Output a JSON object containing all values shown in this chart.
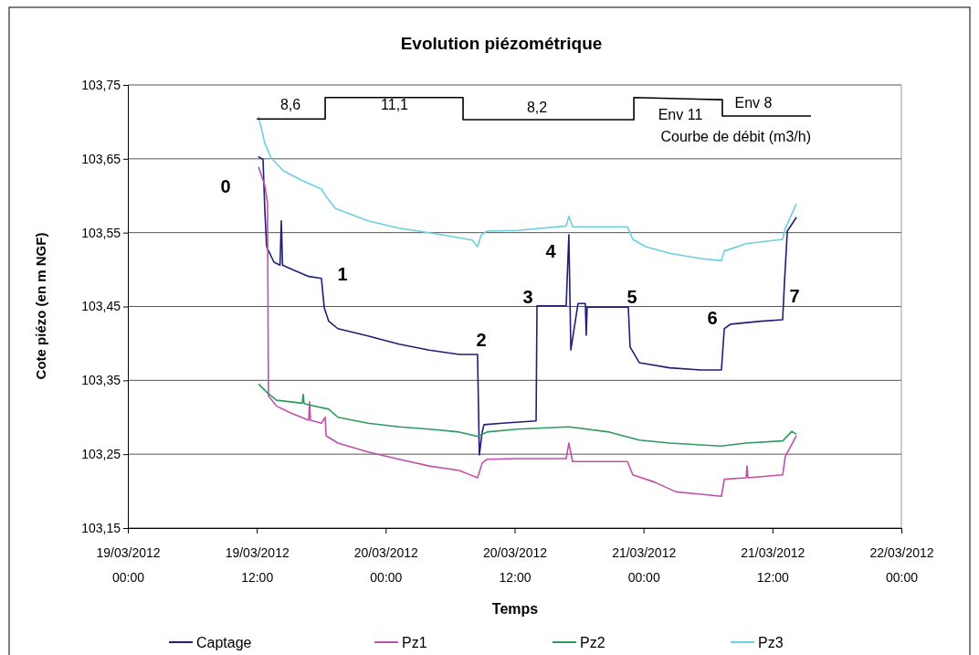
{
  "chart_data": {
    "type": "line",
    "title": "Evolution piézométrique",
    "xlabel": "Temps",
    "ylabel": "Cote piézo (en m NGF)",
    "xlim": [
      "2012-03-19T00:00",
      "2012-03-22T00:00"
    ],
    "xticks": [
      {
        "value": "2012-03-19T00:00",
        "label": "19/03/2012 00:00"
      },
      {
        "value": "2012-03-19T12:00",
        "label": "19/03/2012 12:00"
      },
      {
        "value": "2012-03-20T00:00",
        "label": "20/03/2012 00:00"
      },
      {
        "value": "2012-03-20T12:00",
        "label": "20/03/2012 12:00"
      },
      {
        "value": "2012-03-21T00:00",
        "label": "21/03/2012 00:00"
      },
      {
        "value": "2012-03-21T12:00",
        "label": "21/03/2012 12:00"
      },
      {
        "value": "2012-03-22T00:00",
        "label": "22/03/2012 00:00"
      }
    ],
    "ylim": [
      103.15,
      103.75
    ],
    "yticks": [
      {
        "value": 103.15,
        "label": "103,15"
      },
      {
        "value": 103.25,
        "label": "103,25"
      },
      {
        "value": 103.35,
        "label": "103,35"
      },
      {
        "value": 103.45,
        "label": "103,45"
      },
      {
        "value": 103.55,
        "label": "103,55"
      },
      {
        "value": 103.65,
        "label": "103,65"
      },
      {
        "value": 103.75,
        "label": "103,75"
      }
    ],
    "grid": "y",
    "legend": "bottom",
    "marker": "none",
    "line_style": "solid",
    "series": [
      {
        "name": "Captage",
        "color": "#1f1f78",
        "x": [
          "2012-03-19T12:08",
          "2012-03-19T12:35",
          "2012-03-19T12:45",
          "2012-03-19T12:55",
          "2012-03-19T13:36",
          "2012-03-19T14:10",
          "2012-03-19T14:17",
          "2012-03-19T14:24",
          "2012-03-19T15:18",
          "2012-03-19T16:45",
          "2012-03-19T18:01",
          "2012-03-19T18:17",
          "2012-03-19T18:42",
          "2012-03-19T19:33",
          "2012-03-19T22:21",
          "2012-03-20T01:15",
          "2012-03-20T04:03",
          "2012-03-20T06:51",
          "2012-03-20T08:33",
          "2012-03-20T08:43",
          "2012-03-20T08:59",
          "2012-03-20T09:09",
          "2012-03-20T10:51",
          "2012-03-20T14:00",
          "2012-03-20T14:05",
          "2012-03-20T16:48",
          "2012-03-20T17:03",
          "2012-03-20T17:14",
          "2012-03-20T17:54",
          "2012-03-20T18:35",
          "2012-03-20T18:40",
          "2012-03-20T18:45",
          "2012-03-20T19:06",
          "2012-03-20T22:35",
          "2012-03-20T22:45",
          "2012-03-20T23:36",
          "2012-03-21T02:25",
          "2012-03-21T05:18",
          "2012-03-21T07:15",
          "2012-03-21T07:31",
          "2012-03-21T08:06",
          "2012-03-21T10:55",
          "2012-03-21T12:57",
          "2012-03-21T13:07",
          "2012-03-21T13:23",
          "2012-03-21T14:14"
        ],
        "values": [
          103.653,
          103.649,
          103.58,
          103.531,
          103.51,
          103.506,
          103.566,
          103.506,
          103.5,
          103.491,
          103.488,
          103.448,
          103.43,
          103.42,
          103.41,
          103.399,
          103.391,
          103.385,
          103.385,
          103.249,
          103.28,
          103.29,
          103.292,
          103.295,
          103.451,
          103.451,
          103.547,
          103.391,
          103.454,
          103.454,
          103.411,
          103.449,
          103.449,
          103.449,
          103.395,
          103.374,
          103.367,
          103.364,
          103.364,
          103.42,
          103.426,
          103.43,
          103.432,
          103.482,
          103.552,
          103.571
        ]
      },
      {
        "name": "Pz1",
        "color": "#c050a8",
        "x": [
          "2012-03-19T12:10",
          "2012-03-19T12:45",
          "2012-03-19T13:00",
          "2012-03-19T13:05",
          "2012-03-19T13:51",
          "2012-03-19T15:18",
          "2012-03-19T16:50",
          "2012-03-19T16:55",
          "2012-03-19T17:00",
          "2012-03-19T18:01",
          "2012-03-19T18:22",
          "2012-03-19T18:27",
          "2012-03-19T19:33",
          "2012-03-19T22:21",
          "2012-03-20T01:15",
          "2012-03-20T04:03",
          "2012-03-20T06:51",
          "2012-03-20T08:33",
          "2012-03-20T08:59",
          "2012-03-20T09:25",
          "2012-03-20T12:18",
          "2012-03-20T16:48",
          "2012-03-20T17:03",
          "2012-03-20T17:24",
          "2012-03-20T22:30",
          "2012-03-20T23:00",
          "2012-03-21T01:03",
          "2012-03-21T03:00",
          "2012-03-21T07:15",
          "2012-03-21T07:31",
          "2012-03-21T09:33",
          "2012-03-21T09:38",
          "2012-03-21T09:43",
          "2012-03-21T12:57",
          "2012-03-21T13:12",
          "2012-03-21T14:14"
        ],
        "values": [
          103.639,
          103.614,
          103.59,
          103.329,
          103.315,
          103.305,
          103.296,
          103.321,
          103.296,
          103.292,
          103.3,
          103.275,
          103.265,
          103.253,
          103.243,
          103.234,
          103.228,
          103.218,
          103.238,
          103.243,
          103.244,
          103.244,
          103.265,
          103.24,
          103.24,
          103.222,
          103.212,
          103.199,
          103.193,
          103.216,
          103.218,
          103.234,
          103.218,
          103.222,
          103.247,
          103.275
        ]
      },
      {
        "name": "Pz2",
        "color": "#2e9a5e",
        "x": [
          "2012-03-19T12:10",
          "2012-03-19T13:00",
          "2012-03-19T13:51",
          "2012-03-19T16:14",
          "2012-03-19T16:19",
          "2012-03-19T16:24",
          "2012-03-19T16:45",
          "2012-03-19T18:42",
          "2012-03-19T19:33",
          "2012-03-19T22:21",
          "2012-03-20T01:15",
          "2012-03-20T04:03",
          "2012-03-20T06:51",
          "2012-03-20T08:33",
          "2012-03-20T09:25",
          "2012-03-20T12:18",
          "2012-03-20T17:03",
          "2012-03-20T20:48",
          "2012-03-20T23:36",
          "2012-03-21T02:25",
          "2012-03-21T07:15",
          "2012-03-21T09:33",
          "2012-03-21T12:57",
          "2012-03-21T13:48",
          "2012-03-21T14:14"
        ],
        "values": [
          103.345,
          103.333,
          103.323,
          103.319,
          103.331,
          103.319,
          103.317,
          103.311,
          103.3,
          103.292,
          103.287,
          103.284,
          103.28,
          103.274,
          103.28,
          103.284,
          103.287,
          103.28,
          103.269,
          103.265,
          103.261,
          103.265,
          103.268,
          103.281,
          103.277
        ]
      },
      {
        "name": "Pz3",
        "color": "#6ccfdc",
        "x": [
          "2012-03-19T12:10",
          "2012-03-19T12:45",
          "2012-03-19T13:21",
          "2012-03-19T14:27",
          "2012-03-19T16:09",
          "2012-03-19T18:01",
          "2012-03-19T18:27",
          "2012-03-19T19:18",
          "2012-03-19T22:21",
          "2012-03-20T01:15",
          "2012-03-20T04:03",
          "2012-03-20T06:51",
          "2012-03-20T08:03",
          "2012-03-20T08:33",
          "2012-03-20T08:54",
          "2012-03-20T09:25",
          "2012-03-20T12:18",
          "2012-03-20T16:48",
          "2012-03-20T17:03",
          "2012-03-20T17:24",
          "2012-03-20T22:30",
          "2012-03-20T23:00",
          "2012-03-21T00:12",
          "2012-03-21T02:25",
          "2012-03-21T05:18",
          "2012-03-21T07:15",
          "2012-03-21T07:31",
          "2012-03-21T09:33",
          "2012-03-21T12:57",
          "2012-03-21T13:12",
          "2012-03-21T14:14"
        ],
        "values": [
          103.707,
          103.671,
          103.651,
          103.634,
          103.621,
          103.609,
          103.599,
          103.583,
          103.566,
          103.556,
          103.55,
          103.543,
          103.54,
          103.531,
          103.547,
          103.552,
          103.553,
          103.559,
          103.572,
          103.558,
          103.558,
          103.541,
          103.531,
          103.522,
          103.515,
          103.512,
          103.525,
          103.535,
          103.541,
          103.556,
          103.589
        ]
      },
      {
        "name": "Courbe de débit (m3/h)",
        "color": "#000000",
        "x": [
          "2012-03-19T12:00",
          "2012-03-19T18:22",
          "2012-03-19T18:22",
          "2012-03-20T07:12",
          "2012-03-20T07:12",
          "2012-03-20T23:06",
          "2012-03-20T23:06",
          "2012-03-21T07:20",
          "2012-03-21T07:20",
          "2012-03-21T15:35"
        ],
        "values": [
          103.704,
          103.704,
          103.733,
          103.733,
          103.703,
          103.703,
          103.733,
          103.73,
          103.708,
          103.708
        ]
      }
    ],
    "annotations": [
      "8,6",
      "11,1",
      "8,2",
      "Env 11",
      "Env 8",
      "0",
      "1",
      "2",
      "3",
      "4",
      "5",
      "6",
      "7"
    ]
  }
}
